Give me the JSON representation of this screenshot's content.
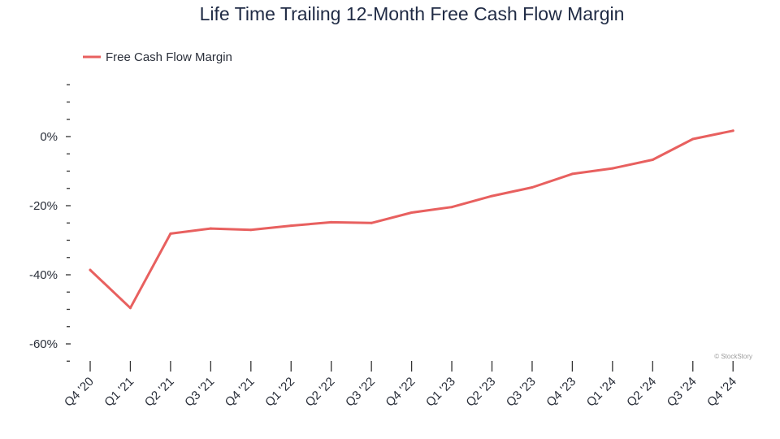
{
  "chart_data": {
    "type": "line",
    "title": "Life Time Trailing 12-Month Free Cash Flow Margin",
    "xlabel": "",
    "ylabel": "",
    "categories": [
      "Q4 '20",
      "Q1 '21",
      "Q2 '21",
      "Q3 '21",
      "Q4 '21",
      "Q1 '22",
      "Q2 '22",
      "Q3 '22",
      "Q4 '22",
      "Q1 '23",
      "Q2 '23",
      "Q3 '23",
      "Q4 '23",
      "Q1 '24",
      "Q2 '24",
      "Q3 '24",
      "Q4 '24"
    ],
    "series": [
      {
        "name": "Free Cash Flow Margin",
        "color": "#e8605f",
        "values": [
          -38.6,
          -49.6,
          -28.1,
          -26.6,
          -27.0,
          -25.8,
          -24.8,
          -25.0,
          -22.0,
          -20.4,
          -17.2,
          -14.7,
          -10.8,
          -9.2,
          -6.7,
          -0.7,
          1.7
        ]
      }
    ],
    "ylim": [
      -65,
      15
    ],
    "yticks": [
      0,
      -20,
      -40,
      -60
    ],
    "ytick_labels": [
      "0%",
      "-20%",
      "-40%",
      "-60%"
    ],
    "legend_position": "top-left",
    "grid": false,
    "watermark": "© StockStory"
  }
}
